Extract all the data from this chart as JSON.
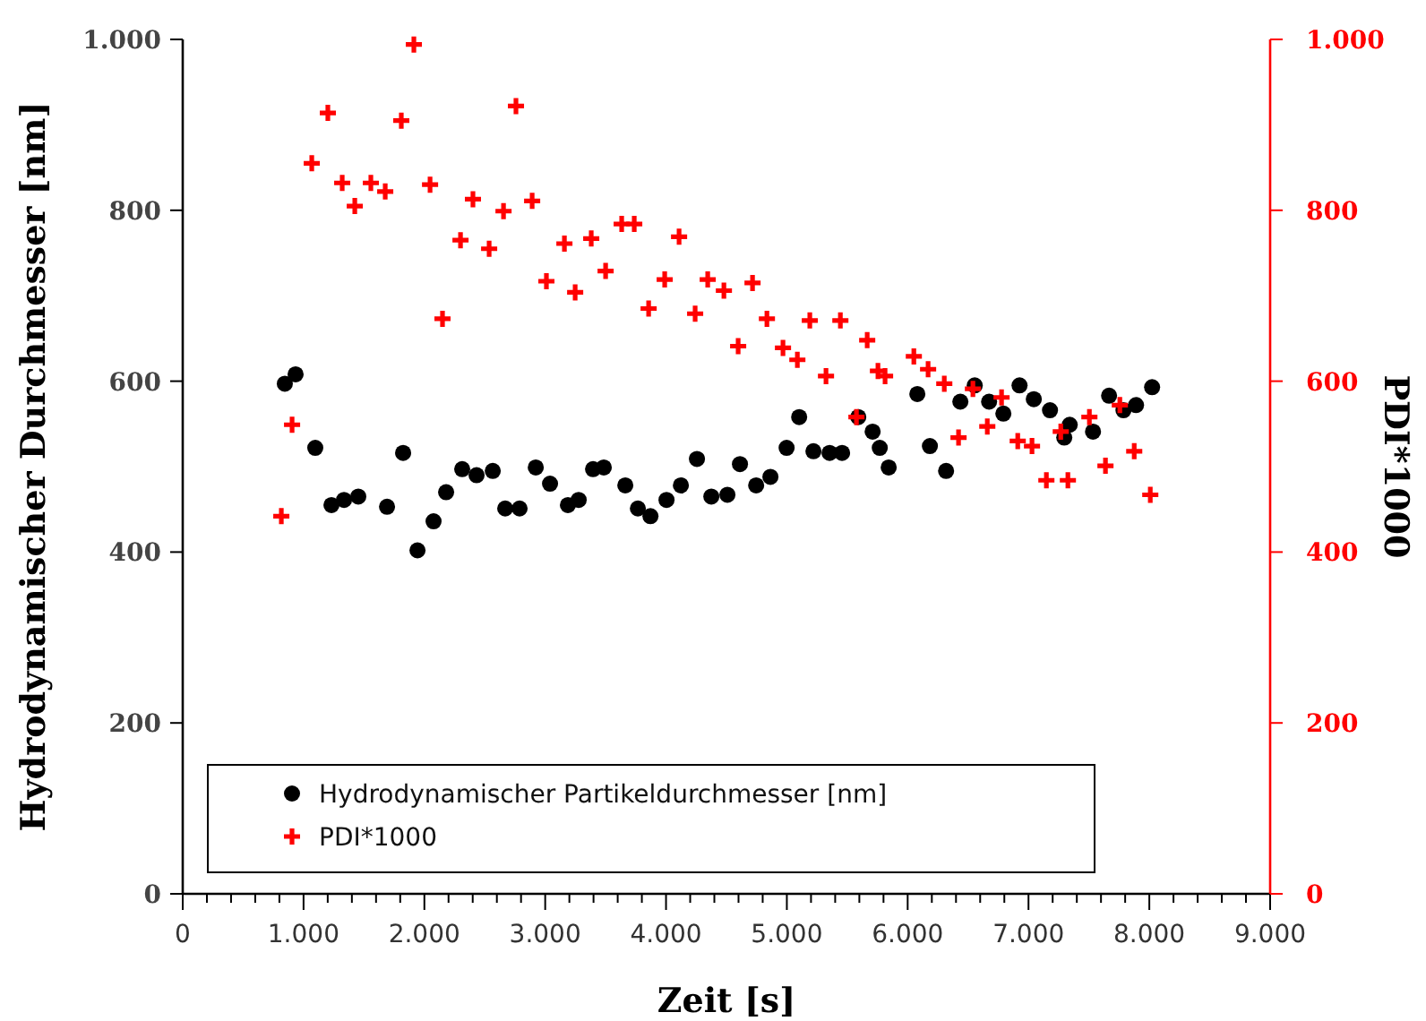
{
  "chart_data": {
    "type": "scatter",
    "xlabel": "Zeit [s]",
    "ylabel": "Hydrodynamischer Durchmesser [nm]",
    "y2label": "PDI*1000",
    "xlim": [
      0,
      9000
    ],
    "xticks": [
      0,
      {
        "value": 200,
        "label": null
      },
      {
        "value": 400,
        "label": null
      },
      {
        "value": 600,
        "label": null
      },
      {
        "value": 800,
        "label": null
      },
      {
        "value": 1000,
        "label": "1.000"
      },
      {
        "value": 1200,
        "label": null
      },
      {
        "value": 1400,
        "label": null
      },
      {
        "value": 1600,
        "label": null
      },
      {
        "value": 1800,
        "label": null
      },
      {
        "value": 2000,
        "label": "2.000"
      },
      {
        "value": 2200,
        "label": null
      },
      {
        "value": 2400,
        "label": null
      },
      {
        "value": 2600,
        "label": null
      },
      {
        "value": 2800,
        "label": null
      },
      {
        "value": 3000,
        "label": "3.000"
      },
      {
        "value": 3200,
        "label": null
      },
      {
        "value": 3400,
        "label": null
      },
      {
        "value": 3600,
        "label": null
      },
      {
        "value": 3800,
        "label": null
      },
      {
        "value": 4000,
        "label": "4.000"
      },
      {
        "value": 4200,
        "label": null
      },
      {
        "value": 4400,
        "label": null
      },
      {
        "value": 4600,
        "label": null
      },
      {
        "value": 4800,
        "label": null
      },
      {
        "value": 5000,
        "label": "5.000"
      },
      {
        "value": 5200,
        "label": null
      },
      {
        "value": 5400,
        "label": null
      },
      {
        "value": 5600,
        "label": null
      },
      {
        "value": 5800,
        "label": null
      },
      {
        "value": 6000,
        "label": "6.000"
      },
      {
        "value": 6200,
        "label": null
      },
      {
        "value": 6400,
        "label": null
      },
      {
        "value": 6600,
        "label": null
      },
      {
        "value": 6800,
        "label": null
      },
      {
        "value": 7000,
        "label": "7.000"
      },
      {
        "value": 7200,
        "label": null
      },
      {
        "value": 7400,
        "label": null
      },
      {
        "value": 7600,
        "label": null
      },
      {
        "value": 7800,
        "label": null
      },
      {
        "value": 8000,
        "label": "8.000"
      },
      {
        "value": 8200,
        "label": null
      },
      {
        "value": 8400,
        "label": null
      },
      {
        "value": 8600,
        "label": null
      },
      {
        "value": 8800,
        "label": null
      },
      {
        "value": 9000,
        "label": "9.000"
      }
    ],
    "ylim": [
      0,
      1000
    ],
    "yticks": [
      0,
      200,
      400,
      600,
      800,
      {
        "value": 1000,
        "label": "1.000"
      }
    ],
    "y2lim": [
      0,
      1000
    ],
    "y2ticks": [
      0,
      200,
      400,
      600,
      800,
      {
        "value": 1000,
        "label": "1.000"
      }
    ],
    "grid": false,
    "legend": "bottom left",
    "series": [
      {
        "name": "Hydrodynamischer Partikeldurchmesser [nm]",
        "color": "#000000",
        "marker": "circle",
        "x": [
          845,
          934,
          1097,
          1231,
          1335,
          1453,
          1691,
          1824,
          1943,
          2076,
          2180,
          2313,
          2432,
          2566,
          2669,
          2788,
          2922,
          3040,
          3188,
          3277,
          3396,
          3485,
          3663,
          3767,
          3871,
          4004,
          4123,
          4256,
          4375,
          4508,
          4612,
          4746,
          4864,
          4998,
          5102,
          5220,
          5354,
          5457,
          5591,
          5710,
          5769,
          5843,
          6080,
          6184,
          6318,
          6436,
          6555,
          6674,
          6792,
          6926,
          7044,
          7178,
          7296,
          7341,
          7534,
          7667,
          7786,
          7890,
          8023
        ],
        "values": [
          597,
          608,
          522,
          455,
          461,
          465,
          453,
          516,
          402,
          436,
          470,
          497,
          490,
          495,
          451,
          451,
          499,
          480,
          455,
          461,
          497,
          499,
          478,
          451,
          442,
          461,
          478,
          509,
          465,
          467,
          503,
          478,
          488,
          522,
          558,
          518,
          516,
          516,
          558,
          541,
          522,
          499,
          585,
          524,
          495,
          576,
          595,
          576,
          562,
          595,
          579,
          566,
          534,
          549,
          541,
          583,
          566,
          572,
          593
        ]
      },
      {
        "name": "PDI*1000",
        "color": "#ff0000",
        "marker": "cross",
        "axis": "y2",
        "x": [
          816,
          905,
          1068,
          1201,
          1320,
          1424,
          1557,
          1676,
          1809,
          1913,
          2047,
          2150,
          2299,
          2402,
          2536,
          2655,
          2758,
          2892,
          3010,
          3159,
          3248,
          3381,
          3500,
          3633,
          3737,
          3856,
          3989,
          4108,
          4241,
          4345,
          4479,
          4597,
          4716,
          4835,
          4968,
          5087,
          5190,
          5324,
          5443,
          5576,
          5665,
          5754,
          5813,
          6051,
          6169,
          6303,
          6421,
          6540,
          6659,
          6777,
          6911,
          7029,
          7148,
          7267,
          7326,
          7504,
          7637,
          7756,
          7875,
          8008
        ],
        "values": [
          442,
          549,
          855,
          914,
          832,
          805,
          832,
          822,
          905,
          994,
          830,
          673,
          765,
          813,
          755,
          799,
          922,
          811,
          717,
          761,
          704,
          767,
          729,
          784,
          784,
          685,
          719,
          769,
          679,
          719,
          706,
          641,
          715,
          673,
          639,
          625,
          671,
          606,
          671,
          558,
          648,
          612,
          606,
          629,
          614,
          597,
          534,
          591,
          547,
          581,
          530,
          524,
          484,
          541,
          484,
          558,
          501,
          572,
          518,
          467
        ]
      }
    ]
  }
}
